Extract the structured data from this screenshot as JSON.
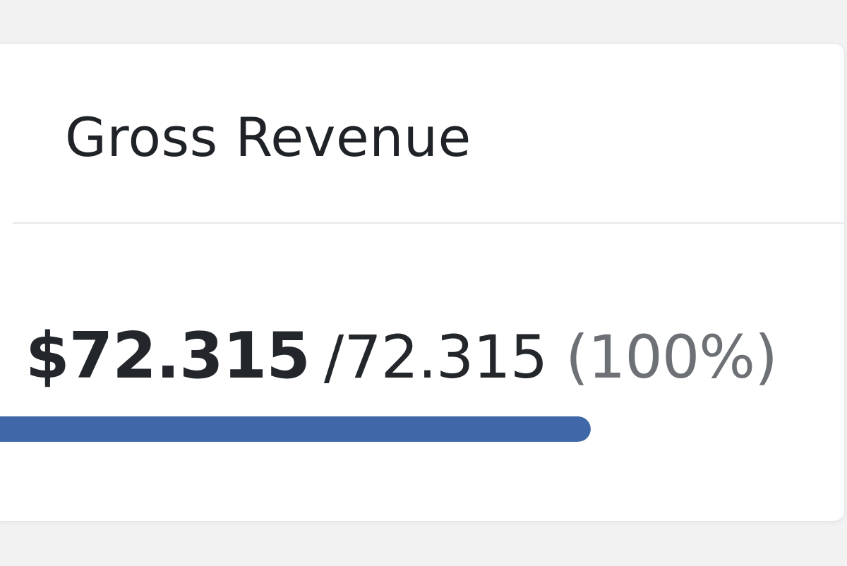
{
  "card": {
    "title": "Gross Revenue",
    "current_value": "$72.315",
    "separator": "/",
    "target_value": "72.315",
    "percent_text": "(100%)"
  },
  "progress": {
    "value": 1.0,
    "color": "#4067a8"
  }
}
